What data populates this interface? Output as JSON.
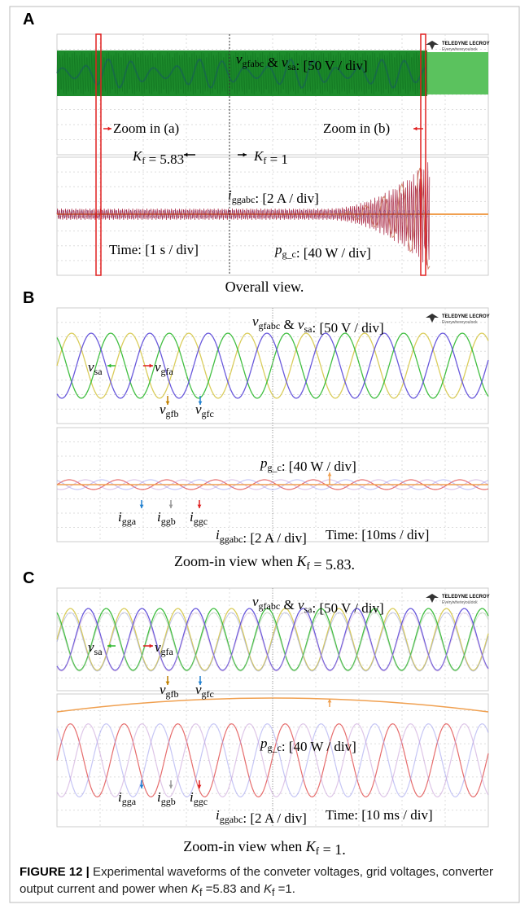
{
  "teledyne": {
    "brand": "TELEDYNE LECROY",
    "tagline": "Everywhereyoulook"
  },
  "panels": [
    {
      "label": "A",
      "caption": [
        {
          "t": "Overall view."
        }
      ],
      "annotations": [
        [
          {
            "t": "v",
            "sub": "gfabc"
          },
          {
            "t": " & "
          },
          {
            "t": "v",
            "sub": "sa"
          },
          {
            "t": ": [50 V / div]"
          }
        ],
        [
          {
            "t": "Zoom in (a)"
          }
        ],
        [
          {
            "t": "Zoom in (b)"
          }
        ],
        [
          {
            "t": "K",
            "sub": "f"
          },
          {
            "t": " = 5.83"
          }
        ],
        [
          {
            "t": "K",
            "sub": "f"
          },
          {
            "t": " = 1"
          }
        ],
        [
          {
            "t": "i",
            "sub": "ggabc"
          },
          {
            "t": ": [2 A / div]"
          }
        ],
        [
          {
            "t": "Time: [1 s / div]"
          }
        ],
        [
          {
            "t": "p",
            "sub": "g_c"
          },
          {
            "t": ": [40 W / div]"
          }
        ]
      ]
    },
    {
      "label": "B",
      "caption": [
        {
          "t": "Zoom-in view when "
        },
        {
          "t": "K",
          "sub": "f"
        },
        {
          "t": " = 5.83."
        }
      ],
      "annotations": [
        [
          {
            "t": "v",
            "sub": "gfabc"
          },
          {
            "t": " & "
          },
          {
            "t": "v",
            "sub": "sa"
          },
          {
            "t": ": [50 V / div]"
          }
        ],
        [
          {
            "t": "v",
            "sub": "sa"
          }
        ],
        [
          {
            "t": "v",
            "sub": "gfa"
          }
        ],
        [
          {
            "t": "v",
            "sub": "gfb"
          }
        ],
        [
          {
            "t": "v",
            "sub": "gfc"
          }
        ],
        [
          {
            "t": "p",
            "sub": "g_c"
          },
          {
            "t": ": [40 W / div]"
          }
        ],
        [
          {
            "t": "i",
            "sub": "gga"
          }
        ],
        [
          {
            "t": "i",
            "sub": "ggb"
          }
        ],
        [
          {
            "t": "i",
            "sub": "ggc"
          }
        ],
        [
          {
            "t": "i",
            "sub": "ggabc"
          },
          {
            "t": ": [2 A / div]"
          }
        ],
        [
          {
            "t": "Time: [10ms / div]"
          }
        ]
      ]
    },
    {
      "label": "C",
      "caption": [
        {
          "t": "Zoom-in view when "
        },
        {
          "t": "K",
          "sub": "f"
        },
        {
          "t": " = 1."
        }
      ],
      "annotations": [
        [
          {
            "t": "v",
            "sub": "gfabc"
          },
          {
            "t": " & "
          },
          {
            "t": "v",
            "sub": "sa"
          },
          {
            "t": ": [50 V / div]"
          }
        ],
        [
          {
            "t": "v",
            "sub": "sa"
          }
        ],
        [
          {
            "t": "v",
            "sub": "gfa"
          }
        ],
        [
          {
            "t": "v",
            "sub": "gfb"
          }
        ],
        [
          {
            "t": "v",
            "sub": "gfc"
          }
        ],
        [
          {
            "t": "p",
            "sub": "g_c"
          },
          {
            "t": ": [40 W / div]"
          }
        ],
        [
          {
            "t": "i",
            "sub": "gga"
          }
        ],
        [
          {
            "t": "i",
            "sub": "ggb"
          }
        ],
        [
          {
            "t": "i",
            "sub": "ggc"
          }
        ],
        [
          {
            "t": "i",
            "sub": "ggabc"
          },
          {
            "t": ": [2 A / div]"
          }
        ],
        [
          {
            "t": "Time: [10 ms / div]"
          }
        ]
      ]
    }
  ],
  "figure_caption": {
    "label": "FIGURE 12 |",
    "text": [
      {
        "t": " Experimental waveforms of the conveter voltages, grid voltages, converter output current and power when "
      },
      {
        "t": "K",
        "sub": "f"
      },
      {
        "t": " =5.83 and "
      },
      {
        "t": "K",
        "sub": "f"
      },
      {
        "t": " =1."
      }
    ]
  }
}
